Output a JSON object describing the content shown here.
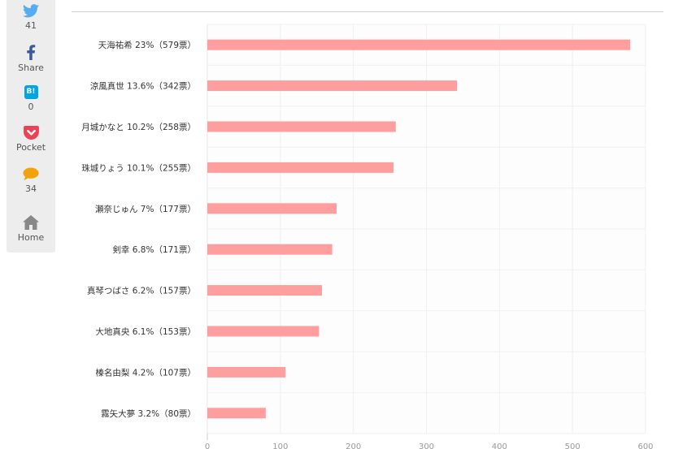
{
  "share": {
    "twitter": {
      "icon": "twitter-bird-icon",
      "count": "41",
      "color": "#55acee"
    },
    "facebook": {
      "icon": "facebook-f-icon",
      "label": "Share",
      "color": "#3b5998"
    },
    "hatena": {
      "icon": "hatena-bookmark-icon",
      "glyph": "B!",
      "count": "0",
      "color": "#00a4de"
    },
    "pocket": {
      "icon": "pocket-icon",
      "label": "Pocket",
      "color": "#ef4056"
    },
    "comment": {
      "icon": "speech-bubble-icon",
      "count": "34",
      "color": "#f0a30a"
    },
    "home": {
      "icon": "home-icon",
      "label": "Home",
      "color": "#888888"
    }
  },
  "chart_data": {
    "type": "bar",
    "orientation": "horizontal",
    "categories": [
      "天海祐希 23%（579票）",
      "涼風真世 13.6%（342票）",
      "月城かなと 10.2%（258票）",
      "珠城りょう 10.1%（255票）",
      "瀬奈じゅん 7%（177票）",
      "剣幸 6.8%（171票）",
      "真琴つばさ 6.2%（157票）",
      "大地真央 6.1%（153票）",
      "榛名由梨 4.2%（107票）",
      "霧矢大夢 3.2%（80票）"
    ],
    "values": [
      579,
      342,
      258,
      255,
      177,
      171,
      157,
      153,
      107,
      80
    ],
    "xticks": [
      "0",
      "100",
      "200",
      "300",
      "400",
      "500",
      "600"
    ],
    "xlim": [
      0,
      600
    ],
    "bar_color": "#ff9e9e",
    "grid": true
  }
}
